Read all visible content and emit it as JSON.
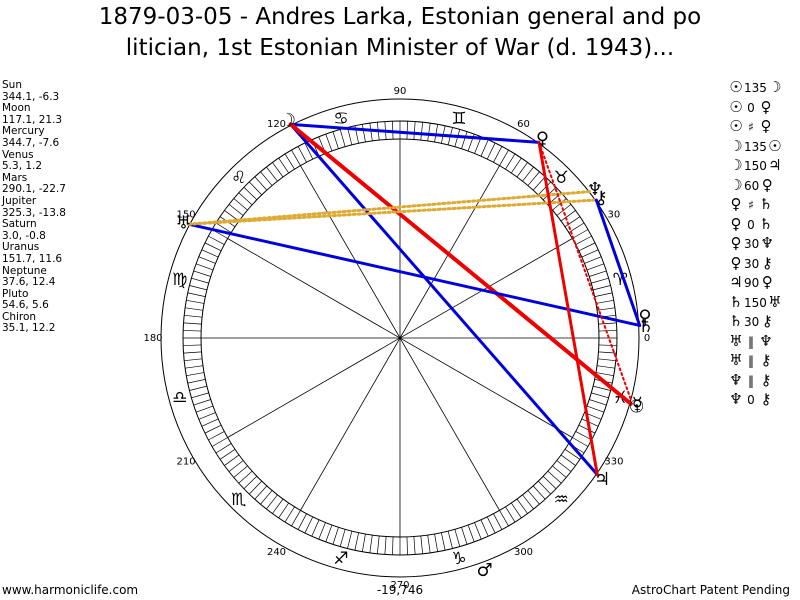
{
  "title_line1": "1879-03-05 - Andres Larka, Estonian general and po",
  "title_line2": "litician, 1st Estonian Minister of War (d. 1943)...",
  "planets": [
    {
      "name": "Sun",
      "coords": "344.1, -6.3"
    },
    {
      "name": "Moon",
      "coords": "117.1, 21.3"
    },
    {
      "name": "Mercury",
      "coords": "344.7, -7.6"
    },
    {
      "name": "Venus",
      "coords": "5.3, 1.2"
    },
    {
      "name": "Mars",
      "coords": "290.1, -22.7"
    },
    {
      "name": "Jupiter",
      "coords": "325.3, -13.8"
    },
    {
      "name": "Saturn",
      "coords": "3.0, -0.8"
    },
    {
      "name": "Uranus",
      "coords": "151.7, 11.6"
    },
    {
      "name": "Neptune",
      "coords": "37.6, 12.4"
    },
    {
      "name": "Pluto",
      "coords": "54.6, 5.6"
    },
    {
      "name": "Chiron",
      "coords": "35.1, 12.2"
    }
  ],
  "aspects": [
    {
      "p1": "☉",
      "value": "135",
      "p2": "☽"
    },
    {
      "p1": "☉",
      "value": "0",
      "p2": "♀"
    },
    {
      "p1": "☉",
      "value": "♯",
      "p2": "♀"
    },
    {
      "p1": "☽",
      "value": "135",
      "p2": "☉"
    },
    {
      "p1": "☽",
      "value": "150",
      "p2": "♃"
    },
    {
      "p1": "☽",
      "value": "60",
      "p2": "♀"
    },
    {
      "p1": "♀",
      "value": "♯",
      "p2": "♄"
    },
    {
      "p1": "♀",
      "value": "0",
      "p2": "♄"
    },
    {
      "p1": "♀",
      "value": "30",
      "p2": "♆"
    },
    {
      "p1": "♀",
      "value": "30",
      "p2": "⚷"
    },
    {
      "p1": "♃",
      "value": "90",
      "p2": "♀"
    },
    {
      "p1": "♄",
      "value": "150",
      "p2": "♅"
    },
    {
      "p1": "♄",
      "value": "30",
      "p2": "⚷"
    },
    {
      "p1": "♅",
      "value": "‖",
      "p2": "♆"
    },
    {
      "p1": "♅",
      "value": "‖",
      "p2": "⚷"
    },
    {
      "p1": "♆",
      "value": "‖",
      "p2": "⚷"
    },
    {
      "p1": "♆",
      "value": "0",
      "p2": "⚷"
    }
  ],
  "footer": {
    "left": "www.harmoniclife.com",
    "center": "-19,746",
    "right": "AstroChart Patent Pending"
  },
  "chart_data": {
    "type": "wheel",
    "degree_labels": [
      {
        "deg": 0,
        "label": "0"
      },
      {
        "deg": 30,
        "label": "30"
      },
      {
        "deg": 60,
        "label": "60"
      },
      {
        "deg": 90,
        "label": "90"
      },
      {
        "deg": 120,
        "label": "120"
      },
      {
        "deg": 150,
        "label": "150"
      },
      {
        "deg": 180,
        "label": "180"
      },
      {
        "deg": 210,
        "label": "210"
      },
      {
        "deg": 240,
        "label": "240"
      },
      {
        "deg": 270,
        "label": "270"
      },
      {
        "deg": 300,
        "label": "300"
      },
      {
        "deg": 330,
        "label": "330"
      }
    ],
    "zodiac": [
      {
        "deg": 15,
        "glyph": "♈"
      },
      {
        "deg": 45,
        "glyph": "♉"
      },
      {
        "deg": 75,
        "glyph": "♊"
      },
      {
        "deg": 105,
        "glyph": "♋"
      },
      {
        "deg": 135,
        "glyph": "♌"
      },
      {
        "deg": 165,
        "glyph": "♍"
      },
      {
        "deg": 195,
        "glyph": "♎"
      },
      {
        "deg": 225,
        "glyph": "♏"
      },
      {
        "deg": 255,
        "glyph": "♐"
      },
      {
        "deg": 285,
        "glyph": "♑"
      },
      {
        "deg": 315,
        "glyph": "♒"
      },
      {
        "deg": 345,
        "glyph": "♓"
      }
    ],
    "bodies": [
      {
        "name": "Sun",
        "lon": 344.1,
        "glyph": "☉"
      },
      {
        "name": "Moon",
        "lon": 117.1,
        "glyph": "☽"
      },
      {
        "name": "Mercury",
        "lon": 344.7,
        "glyph": "☿"
      },
      {
        "name": "Venus",
        "lon": 5.3,
        "glyph": "♀"
      },
      {
        "name": "Mars",
        "lon": 290.1,
        "glyph": "♂"
      },
      {
        "name": "Jupiter",
        "lon": 325.3,
        "glyph": "♃"
      },
      {
        "name": "Saturn",
        "lon": 3.0,
        "glyph": "♄"
      },
      {
        "name": "Uranus",
        "lon": 151.7,
        "glyph": "♅"
      },
      {
        "name": "Neptune",
        "lon": 37.6,
        "glyph": "♆"
      },
      {
        "name": "Pluto",
        "lon": 54.6,
        "glyph": "♀"
      },
      {
        "name": "Chiron",
        "lon": 35.1,
        "glyph": "⚷"
      }
    ],
    "aspect_lines": [
      {
        "from": 117.1,
        "to": 54.6,
        "color": "#0000dd",
        "style": "solid",
        "weight": 3
      },
      {
        "from": 117.1,
        "to": 325.3,
        "color": "#0000dd",
        "style": "solid",
        "weight": 3
      },
      {
        "from": 117.1,
        "to": 344.1,
        "color": "#ee0000",
        "style": "solid",
        "weight": 4
      },
      {
        "from": 151.7,
        "to": 3.0,
        "color": "#0000dd",
        "style": "solid",
        "weight": 3
      },
      {
        "from": 151.7,
        "to": 35.1,
        "color": "#ddaa33",
        "style": "dotted",
        "weight": 3
      },
      {
        "from": 151.7,
        "to": 37.6,
        "color": "#ddaa33",
        "style": "dotted",
        "weight": 3
      },
      {
        "from": 35.1,
        "to": 3.0,
        "color": "#0000dd",
        "style": "solid",
        "weight": 3
      },
      {
        "from": 54.6,
        "to": 325.3,
        "color": "#ee0000",
        "style": "solid",
        "weight": 3
      },
      {
        "from": 54.6,
        "to": 344.7,
        "color": "#ee0000",
        "style": "dotted",
        "weight": 2
      }
    ]
  }
}
